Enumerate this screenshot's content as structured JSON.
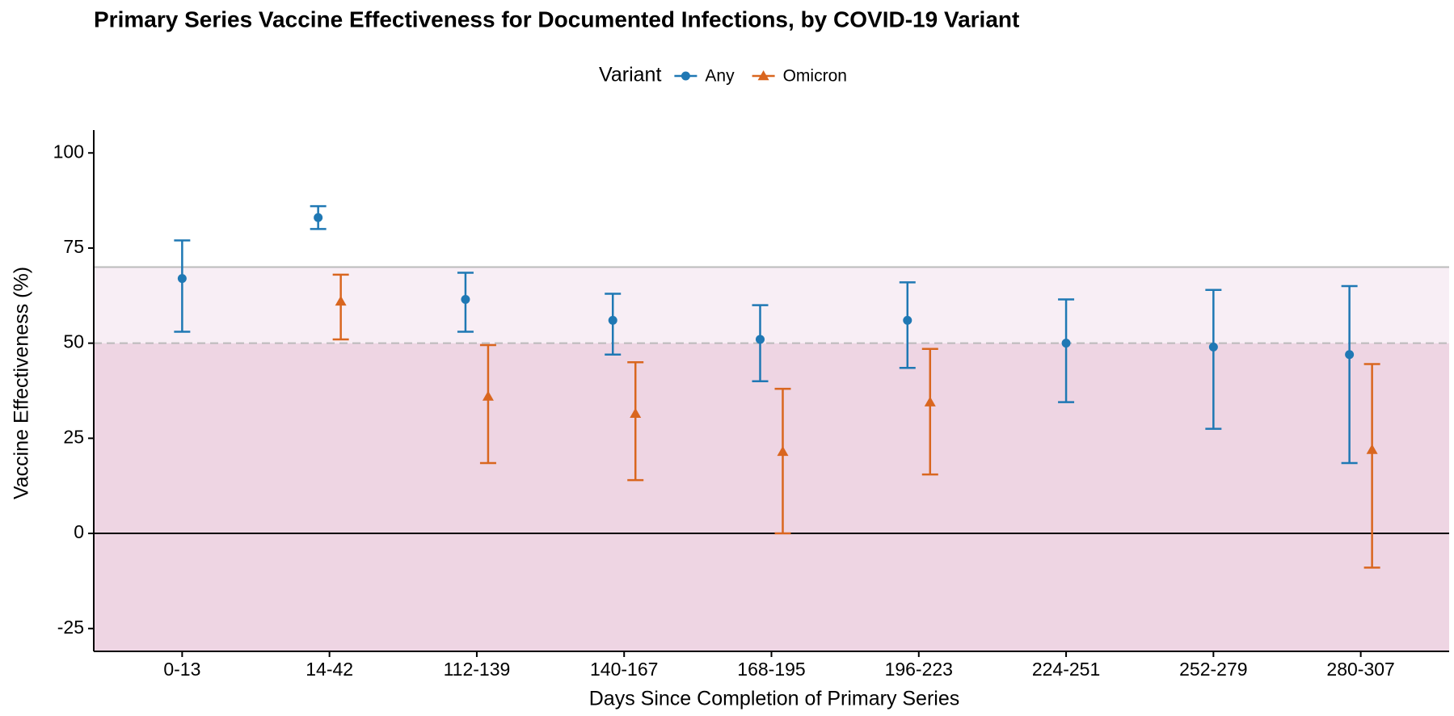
{
  "chart_data": {
    "type": "errorbar",
    "title": "Primary Series Vaccine Effectiveness for Documented Infections, by COVID-19 Variant",
    "x_label": "Days Since Completion of Primary Series",
    "y_label": "Vaccine Effectiveness (%)",
    "legend_title": "Variant",
    "legend_position": "top",
    "categories": [
      "0-13",
      "14-42",
      "112-139",
      "140-167",
      "168-195",
      "196-223",
      "224-251",
      "252-279",
      "280-307"
    ],
    "series": [
      {
        "name": "Any",
        "color": "#1f78b4",
        "marker": "circle",
        "values": [
          67,
          83,
          61.5,
          56,
          51,
          56,
          50,
          49,
          47
        ],
        "lower": [
          53,
          80,
          53,
          47,
          40,
          43.5,
          34.5,
          27.5,
          18.5
        ],
        "upper": [
          77,
          86,
          68.5,
          63,
          60,
          66,
          61.5,
          64,
          65
        ]
      },
      {
        "name": "Omicron",
        "color": "#d9661f",
        "marker": "triangle",
        "values": [
          null,
          61,
          36,
          31.5,
          21.5,
          34.5,
          null,
          null,
          22
        ],
        "lower": [
          null,
          51,
          18.5,
          14,
          0,
          15.5,
          null,
          null,
          -9
        ],
        "upper": [
          null,
          68,
          49.5,
          45,
          38,
          48.5,
          null,
          null,
          44.5
        ]
      }
    ],
    "ylim": [
      -31,
      106
    ],
    "yticks": [
      -25,
      0,
      25,
      50,
      75,
      100
    ],
    "zero_line": 0,
    "reference_lines": [
      {
        "value": 70,
        "style": "solid",
        "color": "#bbbbbb",
        "band_color": "#f8eef5"
      },
      {
        "value": 50,
        "style": "dashed",
        "color": "#bbbbbb",
        "band_color": "#eed5e3"
      }
    ]
  }
}
